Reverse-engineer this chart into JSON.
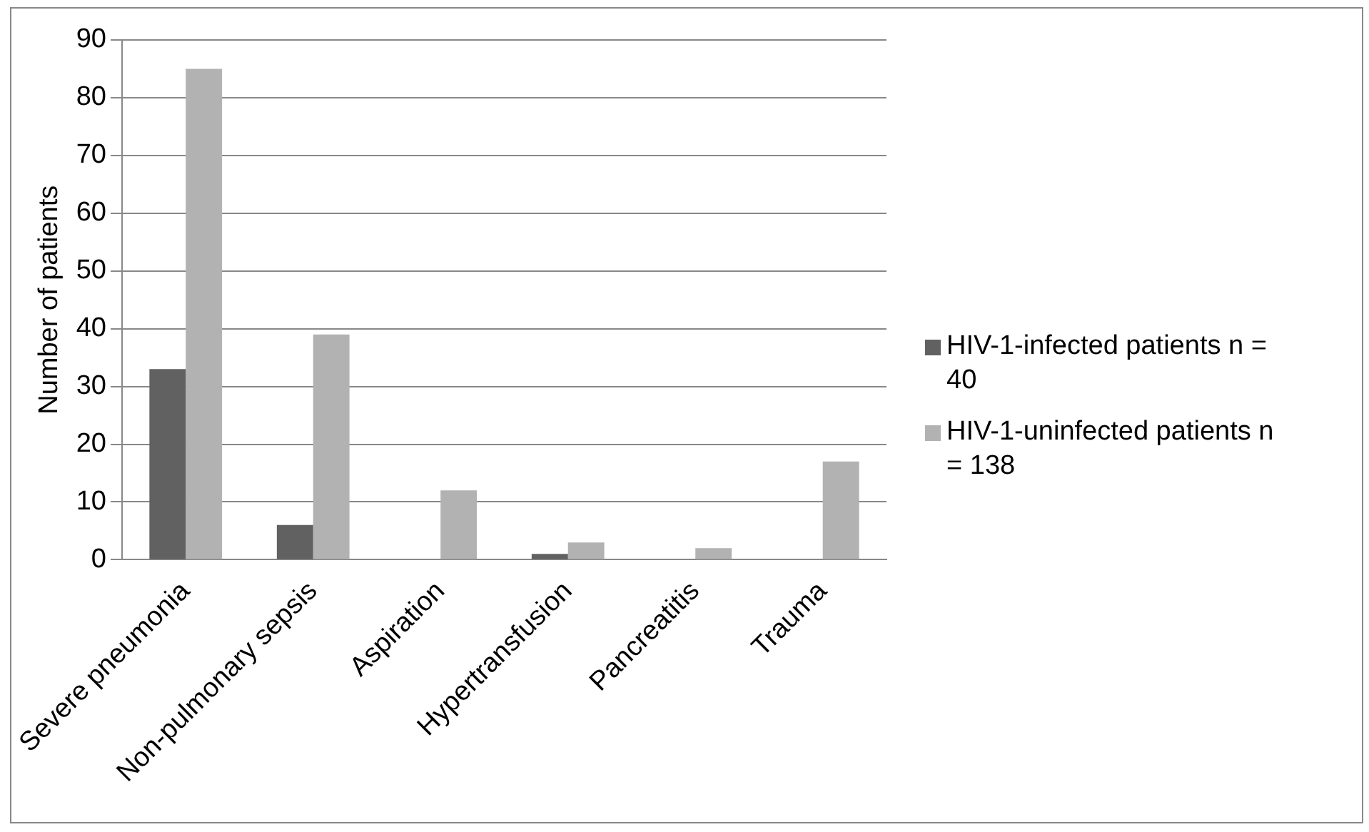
{
  "chart_data": {
    "type": "bar",
    "ylabel": "Number of patients",
    "categories": [
      "Severe pneumonia",
      "Non-pulmonary sepsis",
      "Aspiration",
      "Hypertransfusion",
      "Pancreatitis",
      "Trauma"
    ],
    "series": [
      {
        "name": "HIV-1-infected patients n = 40",
        "color": "#616161",
        "values": [
          33,
          6,
          0,
          1,
          0,
          0
        ]
      },
      {
        "name": "HIV-1-uninfected patients n = 138",
        "color": "#b2b2b2",
        "values": [
          85,
          39,
          12,
          3,
          2,
          17
        ]
      }
    ],
    "ylim": [
      0,
      90
    ],
    "yticks": [
      0,
      10,
      20,
      30,
      40,
      50,
      60,
      70,
      80,
      90
    ],
    "grid": "y",
    "legend": "right"
  }
}
